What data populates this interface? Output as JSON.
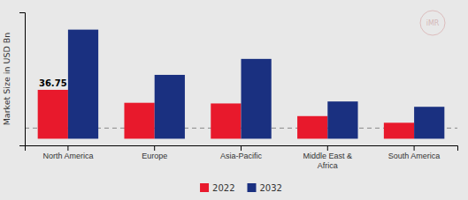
{
  "chart_data": {
    "type": "bar",
    "y_label": "Market Size in USD Bn",
    "categories": [
      "North America",
      "Europe",
      "Asia-Pacific",
      "Middle East &\nAfrica",
      "South America"
    ],
    "series": [
      {
        "name": "2022",
        "color": "#e8192c",
        "values": [
          36.75,
          27.0,
          26.5,
          17.0,
          12.0
        ]
      },
      {
        "name": "2032",
        "color": "#1a3080",
        "values": [
          82.0,
          48.0,
          60.0,
          28.0,
          24.0
        ]
      }
    ],
    "annotation": "36.75",
    "reference_line": 8.0,
    "watermark": "iMR",
    "ylim": [
      -5,
      95
    ],
    "tick_labels": "x",
    "grid": false
  }
}
